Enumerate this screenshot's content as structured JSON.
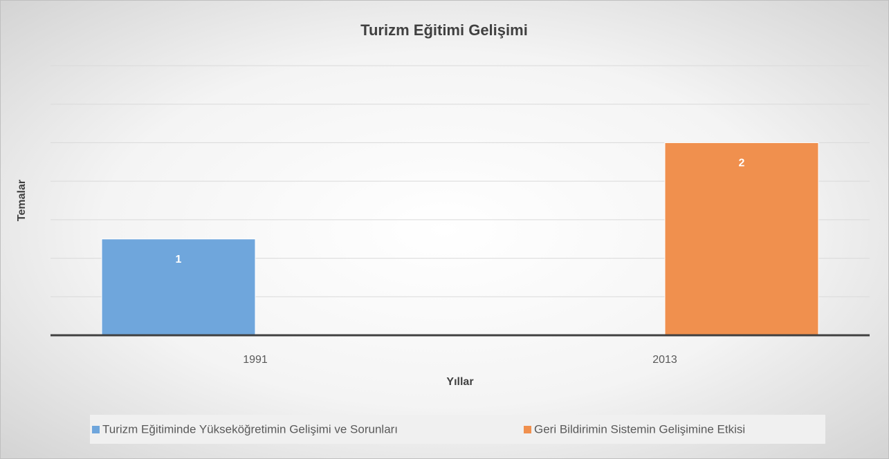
{
  "chart_data": {
    "type": "bar",
    "title": "Turizm Eğitimi Gelişimi",
    "x_label": "Yıllar",
    "y_label": "Temalar",
    "categories": [
      "1991",
      "2013"
    ],
    "series": [
      {
        "name": "Turizm Eğitiminde Yükseköğretimin Gelişimi ve Sorunları",
        "color": "#6fa6dc",
        "values": [
          1,
          null
        ]
      },
      {
        "name": "Geri Bildirimin Sistemin Gelişimine Etkisi",
        "color": "#f0904e",
        "values": [
          null,
          2
        ]
      }
    ],
    "ylim": [
      0,
      2.8
    ],
    "yticks": [
      0,
      0.4,
      0.8,
      1.2,
      1.6,
      2,
      2.4,
      2.8
    ],
    "grid": true,
    "legend": "bottom"
  }
}
